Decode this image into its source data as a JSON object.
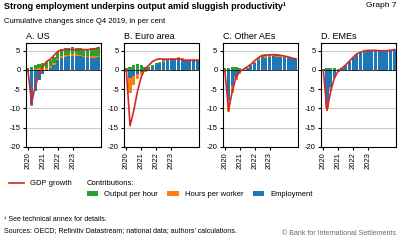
{
  "title": "Strong employment underpins output amid sluggish productivity¹",
  "subtitle": "Cumulative changes since Q4 2019, in per cent",
  "annotations": [
    "Graph 7",
    "Contributions:",
    "¹ See technical annex for details.",
    "Sources: OECD; Refinitiv Datastream; national data; authors’ calculations.",
    "© Bank for International Settlements"
  ],
  "legend": "upper left",
  "chart_data": [
    {
      "type": "bar",
      "stacked": true,
      "grid": true,
      "title": "A. US",
      "categories": [
        "2020",
        null,
        null,
        null,
        "2021",
        null,
        null,
        null,
        "2022",
        null,
        null,
        null,
        "2023",
        null,
        null,
        null,
        null,
        null,
        null,
        null
      ],
      "ylim": [
        -20,
        7
      ],
      "yticks": [
        -20,
        -15,
        -10,
        -5,
        0,
        5
      ],
      "series": [
        {
          "name": "Employment",
          "type": "bar",
          "values": [
            -0.4,
            -9.0,
            -5.5,
            -2.5,
            -1.0,
            -0.2,
            0.5,
            1.4,
            2.5,
            3.0,
            3.3,
            3.5,
            3.7,
            3.7,
            3.6,
            3.4,
            3.3,
            3.2,
            3.2,
            3.3
          ]
        },
        {
          "name": "Hours per worker",
          "type": "bar",
          "values": [
            -0.2,
            -0.3,
            0.3,
            0.4,
            0.5,
            0.6,
            0.5,
            0.4,
            0.4,
            0.5,
            0.5,
            0.4,
            0.4,
            0.4,
            0.4,
            0.3,
            0.3,
            0.4,
            0.4,
            0.4
          ]
        },
        {
          "name": "Output per hour",
          "type": "bar",
          "values": [
            0.5,
            0.7,
            1.0,
            1.1,
            1.3,
            1.4,
            1.5,
            1.6,
            1.8,
            1.9,
            1.9,
            1.8,
            1.8,
            1.7,
            1.8,
            1.8,
            1.9,
            2.0,
            2.1,
            2.2
          ]
        },
        {
          "name": "GDP growth",
          "type": "line",
          "values": [
            0.0,
            -8.5,
            -4.2,
            -1.0,
            0.8,
            2.2,
            2.8,
            3.8,
            4.8,
            5.2,
            5.3,
            5.3,
            5.3,
            5.2,
            5.3,
            5.3,
            5.3,
            5.4,
            5.5,
            5.8
          ]
        }
      ]
    },
    {
      "type": "bar",
      "stacked": true,
      "grid": true,
      "title": "B. Euro area",
      "categories": [
        "2020",
        null,
        null,
        null,
        "2021",
        null,
        null,
        null,
        "2022",
        null,
        null,
        null,
        "2023",
        null,
        null,
        null,
        null,
        null,
        null,
        null
      ],
      "ylim": [
        -20,
        7
      ],
      "yticks": [
        -20,
        -15,
        -10,
        -5,
        0,
        5
      ],
      "series": [
        {
          "name": "Employment",
          "type": "bar",
          "values": [
            -0.2,
            -2.2,
            -1.6,
            -1.1,
            -0.6,
            -0.2,
            0.2,
            0.8,
            1.4,
            1.9,
            2.2,
            2.5,
            2.7,
            2.9,
            3.1,
            2.9,
            2.6,
            2.6,
            2.6,
            2.7
          ]
        },
        {
          "name": "Hours per worker",
          "type": "bar",
          "values": [
            -0.4,
            -3.8,
            -2.2,
            -1.3,
            -0.7,
            -0.4,
            -0.2,
            -0.1,
            0.0,
            0.1,
            0.2,
            0.2,
            0.3,
            0.3,
            0.3,
            0.3,
            0.2,
            0.2,
            0.2,
            0.2
          ]
        },
        {
          "name": "Output per hour",
          "type": "bar",
          "values": [
            0.4,
            0.8,
            1.2,
            1.5,
            1.2,
            0.9,
            0.7,
            0.5,
            0.3,
            0.2,
            0.1,
            0.0,
            -0.1,
            -0.2,
            -0.2,
            -0.3,
            -0.2,
            -0.1,
            -0.1,
            0.0
          ]
        },
        {
          "name": "GDP growth",
          "type": "line",
          "values": [
            0.0,
            -14.5,
            -10.5,
            -5.5,
            -1.8,
            0.3,
            1.2,
            2.2,
            2.7,
            2.9,
            2.8,
            2.8,
            2.8,
            2.8,
            2.9,
            2.7,
            2.4,
            2.5,
            2.5,
            2.5
          ]
        }
      ]
    },
    {
      "type": "bar",
      "stacked": true,
      "grid": true,
      "title": "C. Other AEs",
      "categories": [
        "2020",
        null,
        null,
        null,
        "2021",
        null,
        null,
        null,
        "2022",
        null,
        null,
        null,
        "2023",
        null,
        null,
        null,
        null,
        null,
        null,
        null
      ],
      "ylim": [
        -20,
        7
      ],
      "yticks": [
        -20,
        -15,
        -10,
        -5,
        0,
        5
      ],
      "series": [
        {
          "name": "Employment",
          "type": "bar",
          "values": [
            -0.2,
            -7.8,
            -4.2,
            -1.8,
            -0.6,
            -0.1,
            0.4,
            1.1,
            1.9,
            2.6,
            3.0,
            3.2,
            3.4,
            3.5,
            3.4,
            3.4,
            3.3,
            3.1,
            3.0,
            2.9
          ]
        },
        {
          "name": "Hours per worker",
          "type": "bar",
          "values": [
            -0.4,
            -3.2,
            -1.8,
            -0.9,
            -0.4,
            -0.1,
            0.0,
            0.0,
            0.1,
            0.2,
            0.2,
            0.3,
            0.3,
            0.3,
            0.3,
            0.2,
            0.2,
            0.2,
            0.2,
            0.2
          ]
        },
        {
          "name": "Output per hour",
          "type": "bar",
          "values": [
            0.4,
            0.6,
            0.8,
            0.7,
            0.5,
            0.3,
            0.2,
            0.2,
            0.2,
            0.3,
            0.4,
            0.4,
            0.4,
            0.4,
            0.4,
            0.3,
            0.2,
            0.1,
            0.0,
            -0.1
          ]
        },
        {
          "name": "GDP growth",
          "type": "line",
          "values": [
            0.0,
            -10.5,
            -5.5,
            -2.0,
            -0.4,
            0.2,
            0.8,
            1.5,
            2.4,
            3.2,
            3.8,
            3.9,
            3.9,
            4.0,
            3.9,
            3.8,
            3.6,
            3.4,
            3.1,
            2.9
          ]
        }
      ]
    },
    {
      "type": "bar",
      "stacked": true,
      "grid": true,
      "title": "D. EMEs",
      "categories": [
        "2020",
        null,
        null,
        null,
        "2021",
        null,
        null,
        null,
        "2022",
        null,
        null,
        null,
        "2023",
        null,
        null,
        null,
        null,
        null,
        null,
        null
      ],
      "ylim": [
        -20,
        7
      ],
      "yticks": [
        -20,
        -15,
        -10,
        -5,
        0,
        5
      ],
      "series": [
        {
          "name": "Employment",
          "type": "bar",
          "values": [
            -0.2,
            -8.5,
            -4.5,
            -1.8,
            -0.4,
            0.4,
            1.1,
            2.1,
            3.1,
            3.9,
            4.3,
            4.6,
            4.8,
            4.8,
            4.8,
            4.8,
            4.8,
            4.8,
            5.0,
            5.2
          ]
        },
        {
          "name": "Hours per worker",
          "type": "bar",
          "values": [
            -0.1,
            -1.5,
            -0.9,
            -0.4,
            -0.1,
            0.0,
            0.1,
            0.2,
            0.3,
            0.3,
            0.3,
            0.4,
            0.4,
            0.4,
            0.3,
            0.3,
            0.3,
            0.3,
            0.3,
            0.3
          ]
        },
        {
          "name": "Output per hour",
          "type": "bar",
          "values": [
            0.2,
            0.4,
            0.6,
            0.4,
            0.2,
            0.1,
            0.0,
            -0.1,
            -0.2,
            -0.2,
            -0.1,
            0.0,
            0.0,
            0.0,
            -0.1,
            -0.2,
            -0.2,
            -0.3,
            -0.3,
            -0.3
          ]
        },
        {
          "name": "GDP growth",
          "type": "line",
          "values": [
            0.0,
            -10.5,
            -5.5,
            -2.0,
            -0.3,
            0.5,
            1.3,
            2.3,
            3.3,
            4.2,
            4.6,
            5.0,
            5.1,
            5.1,
            5.1,
            5.0,
            5.0,
            5.0,
            5.1,
            5.3
          ]
        }
      ]
    }
  ]
}
